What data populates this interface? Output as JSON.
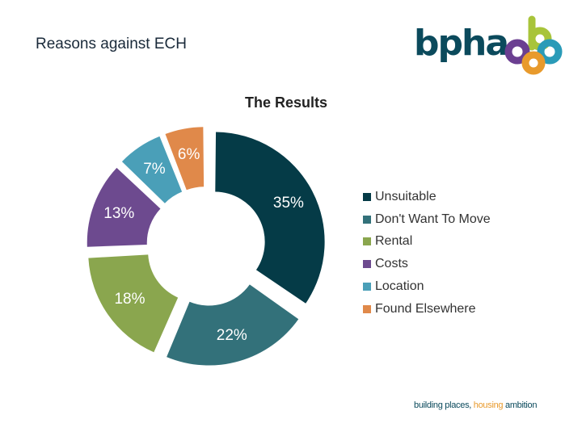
{
  "slide": {
    "title": "Reasons against ECH",
    "tagline_parts": [
      "building places, ",
      "housing ",
      "ambition"
    ]
  },
  "logo": {
    "text": "bpha",
    "colors": {
      "primary": "#0b4a5c",
      "lime": "#a8c43a",
      "purple": "#6b3f91",
      "orange": "#e89a2c",
      "teal": "#2a9bb8"
    }
  },
  "chart_data": {
    "type": "pie",
    "donut": true,
    "title": "The Results",
    "legend_position": "right",
    "slices": [
      {
        "name": "Unsuitable",
        "value": 35,
        "label": "35%",
        "color": "#053b47"
      },
      {
        "name": "Don't Want To Move",
        "value": 22,
        "label": "22%",
        "color": "#33717a"
      },
      {
        "name": "Rental",
        "value": 18,
        "label": "18%",
        "color": "#8aa64e"
      },
      {
        "name": "Costs",
        "value": 13,
        "label": "13%",
        "color": "#6d4a8f"
      },
      {
        "name": "Location",
        "value": 7,
        "label": "7%",
        "color": "#4a9fb8"
      },
      {
        "name": "Found Elsewhere",
        "value": 6,
        "label": "6%",
        "color": "#e0894a"
      }
    ]
  }
}
